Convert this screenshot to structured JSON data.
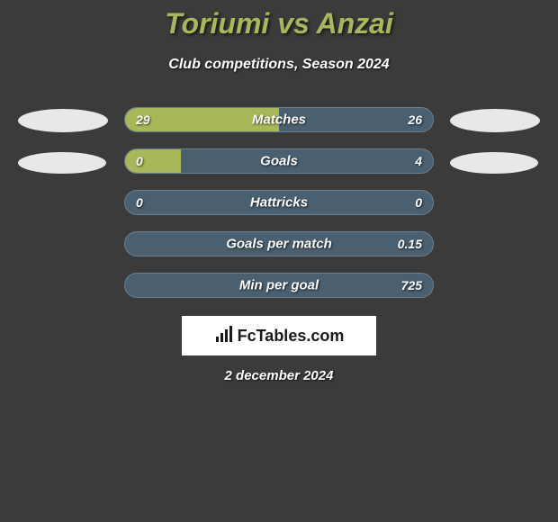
{
  "title": "Toriumi vs Anzai",
  "subtitle": "Club competitions, Season 2024",
  "colors": {
    "background": "#3b3b3b",
    "accent": "#a8b858",
    "bar_bg": "#4a6070",
    "bar_fill": "#a8b858",
    "text": "#ffffff"
  },
  "stats": [
    {
      "label": "Matches",
      "left_value": "29",
      "right_value": "26",
      "left_fill_pct": 50,
      "right_fill_pct": 0
    },
    {
      "label": "Goals",
      "left_value": "0",
      "right_value": "4",
      "left_fill_pct": 18,
      "right_fill_pct": 0
    },
    {
      "label": "Hattricks",
      "left_value": "0",
      "right_value": "0",
      "left_fill_pct": 0,
      "right_fill_pct": 0
    },
    {
      "label": "Goals per match",
      "left_value": "",
      "right_value": "0.15",
      "left_fill_pct": 0,
      "right_fill_pct": 0
    },
    {
      "label": "Min per goal",
      "left_value": "",
      "right_value": "725",
      "left_fill_pct": 0,
      "right_fill_pct": 0
    }
  ],
  "logo_text": "FcTables.com",
  "date": "2 december 2024"
}
